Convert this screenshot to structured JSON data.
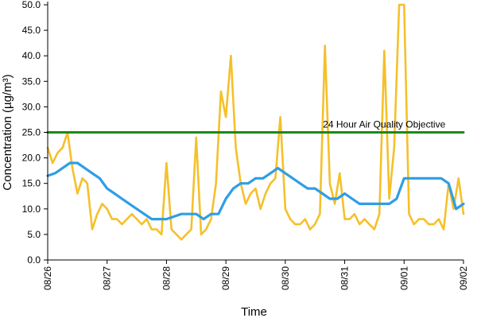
{
  "chart_data": {
    "type": "line",
    "xlabel": "Time",
    "ylabel": "Concentration (µg/m³)",
    "ylim": [
      0,
      50
    ],
    "yticks": [
      "0.0",
      "5.0",
      "10.0",
      "15.0",
      "20.0",
      "25.0",
      "30.0",
      "35.0",
      "40.0",
      "45.0",
      "50.0"
    ],
    "xlim": [
      "08/26",
      "09/02"
    ],
    "xticks": [
      "08/26",
      "08/27",
      "08/28",
      "08/29",
      "08/30",
      "08/31",
      "09/01",
      "09/02"
    ],
    "grid": false,
    "legend": "none",
    "annotations": [
      {
        "text": "24 Hour Air Quality Objective",
        "x": "08/30 12:00",
        "y": 25
      }
    ],
    "series": [
      {
        "color": "#f5c02a",
        "style": "hourly",
        "x": [
          "08/26 00:00",
          "08/26 02:00",
          "08/26 04:00",
          "08/26 06:00",
          "08/26 08:00",
          "08/26 10:00",
          "08/26 12:00",
          "08/26 14:00",
          "08/26 16:00",
          "08/26 18:00",
          "08/26 20:00",
          "08/26 22:00",
          "08/27 00:00",
          "08/27 02:00",
          "08/27 04:00",
          "08/27 06:00",
          "08/27 08:00",
          "08/27 10:00",
          "08/27 12:00",
          "08/27 14:00",
          "08/27 16:00",
          "08/27 18:00",
          "08/27 20:00",
          "08/27 22:00",
          "08/28 00:00",
          "08/28 02:00",
          "08/28 04:00",
          "08/28 06:00",
          "08/28 08:00",
          "08/28 10:00",
          "08/28 12:00",
          "08/28 14:00",
          "08/28 16:00",
          "08/28 18:00",
          "08/28 20:00",
          "08/28 22:00",
          "08/29 00:00",
          "08/29 02:00",
          "08/29 04:00",
          "08/29 06:00",
          "08/29 08:00",
          "08/29 10:00",
          "08/29 12:00",
          "08/29 14:00",
          "08/29 16:00",
          "08/29 18:00",
          "08/29 20:00",
          "08/29 22:00",
          "08/30 00:00",
          "08/30 02:00",
          "08/30 04:00",
          "08/30 06:00",
          "08/30 08:00",
          "08/30 10:00",
          "08/30 12:00",
          "08/30 14:00",
          "08/30 16:00",
          "08/30 18:00",
          "08/30 20:00",
          "08/30 22:00",
          "08/31 00:00",
          "08/31 02:00",
          "08/31 04:00",
          "08/31 06:00",
          "08/31 08:00",
          "08/31 10:00",
          "08/31 12:00",
          "08/31 14:00",
          "08/31 16:00",
          "08/31 18:00",
          "08/31 20:00",
          "08/31 22:00",
          "09/01 00:00",
          "09/01 02:00",
          "09/01 04:00",
          "09/01 06:00",
          "09/01 08:00",
          "09/01 10:00",
          "09/01 12:00",
          "09/01 14:00",
          "09/01 16:00",
          "09/01 18:00",
          "09/01 20:00",
          "09/01 22:00",
          "09/02 00:00"
        ],
        "values": [
          22,
          19,
          21,
          22,
          25,
          18,
          13,
          16,
          15,
          6,
          9,
          11,
          10,
          8,
          8,
          7,
          8,
          9,
          8,
          7,
          8,
          6,
          6,
          5,
          19,
          6,
          5,
          4,
          5,
          6,
          24,
          5,
          6,
          8,
          15,
          33,
          28,
          40,
          22,
          15,
          11,
          13,
          14,
          10,
          13,
          15,
          16,
          28,
          10,
          8,
          7,
          7,
          8,
          6,
          7,
          9,
          42,
          15,
          11,
          17,
          8,
          8,
          9,
          7,
          8,
          7,
          6,
          9,
          41,
          12,
          22,
          50,
          50,
          9,
          7,
          8,
          8,
          7,
          7,
          8,
          6,
          15,
          10,
          16,
          9
        ]
      },
      {
        "color": "#2f9ee4",
        "style": "24-hour running average",
        "x": [
          "08/26 00:00",
          "08/26 03:00",
          "08/26 06:00",
          "08/26 09:00",
          "08/26 12:00",
          "08/26 15:00",
          "08/26 18:00",
          "08/26 21:00",
          "08/27 00:00",
          "08/27 03:00",
          "08/27 06:00",
          "08/27 09:00",
          "08/27 12:00",
          "08/27 15:00",
          "08/27 18:00",
          "08/27 21:00",
          "08/28 00:00",
          "08/28 03:00",
          "08/28 06:00",
          "08/28 09:00",
          "08/28 12:00",
          "08/28 15:00",
          "08/28 18:00",
          "08/28 21:00",
          "08/29 00:00",
          "08/29 03:00",
          "08/29 06:00",
          "08/29 09:00",
          "08/29 12:00",
          "08/29 15:00",
          "08/29 18:00",
          "08/29 21:00",
          "08/30 00:00",
          "08/30 03:00",
          "08/30 06:00",
          "08/30 09:00",
          "08/30 12:00",
          "08/30 15:00",
          "08/30 18:00",
          "08/30 21:00",
          "08/31 00:00",
          "08/31 03:00",
          "08/31 06:00",
          "08/31 09:00",
          "08/31 12:00",
          "08/31 15:00",
          "08/31 18:00",
          "08/31 21:00",
          "09/01 00:00",
          "09/01 03:00",
          "09/01 06:00",
          "09/01 09:00",
          "09/01 12:00",
          "09/01 15:00",
          "09/01 18:00",
          "09/01 21:00",
          "09/02 00:00"
        ],
        "values": [
          16.5,
          17,
          18,
          19,
          19,
          18,
          17,
          16,
          14,
          13,
          12,
          11,
          10,
          9,
          8,
          8,
          8,
          8.5,
          9,
          9,
          9,
          8,
          9,
          9,
          12,
          14,
          15,
          15,
          16,
          16,
          17,
          18,
          17,
          16,
          15,
          14,
          14,
          13,
          12,
          12,
          13,
          12,
          11,
          11,
          11,
          11,
          11,
          12,
          16,
          16,
          16,
          16,
          16,
          16,
          15,
          10,
          11
        ]
      },
      {
        "color": "#1a8a1a",
        "style": "objective",
        "x": [
          "08/26 00:00",
          "09/02 00:00"
        ],
        "values": [
          25,
          25
        ]
      }
    ]
  }
}
